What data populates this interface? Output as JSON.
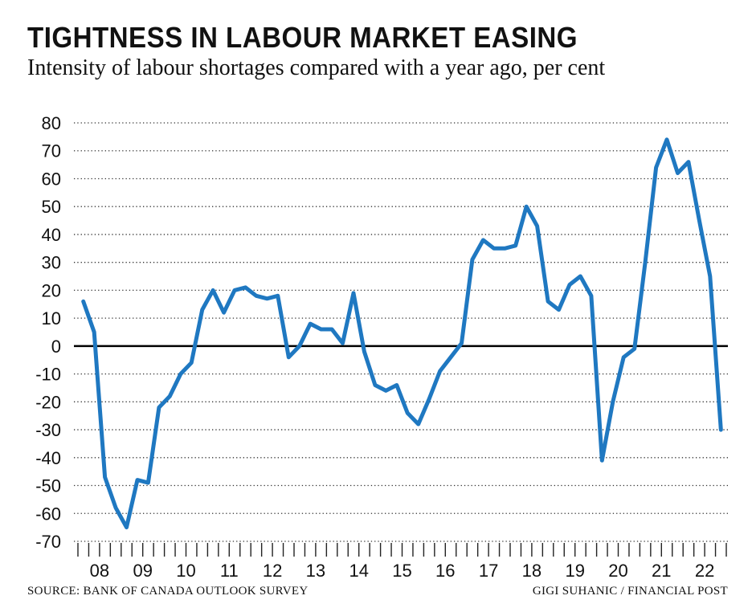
{
  "title": "TIGHTNESS IN LABOUR MARKET EASING",
  "subtitle": "Intensity of labour shortages compared with a year ago, per cent",
  "source": "SOURCE: BANK OF CANADA OUTLOOK SURVEY",
  "credit": "GIGI SUHANIC / FINANCIAL POST",
  "colors": {
    "line": "#1f78c1",
    "zero_line": "#000000",
    "grid": "#333333"
  },
  "chart_data": {
    "type": "line",
    "title": "TIGHTNESS IN LABOUR MARKET EASING",
    "ylabel": "",
    "xlabel": "",
    "ylim": [
      -70,
      80
    ],
    "yticks": [
      80,
      70,
      60,
      50,
      40,
      30,
      20,
      10,
      0,
      -10,
      -20,
      -30,
      -40,
      -50,
      -60,
      -70
    ],
    "grid": "dotted horizontal",
    "xlim": [
      2008.0,
      2023.0
    ],
    "x_tick_labels": [
      {
        "label": "08",
        "year": 2008
      },
      {
        "label": "09",
        "year": 2009
      },
      {
        "label": "10",
        "year": 2010
      },
      {
        "label": "11",
        "year": 2011
      },
      {
        "label": "12",
        "year": 2012
      },
      {
        "label": "13",
        "year": 2013
      },
      {
        "label": "14",
        "year": 2014
      },
      {
        "label": "15",
        "year": 2015
      },
      {
        "label": "16",
        "year": 2016
      },
      {
        "label": "17",
        "year": 2017
      },
      {
        "label": "18",
        "year": 2018
      },
      {
        "label": "19",
        "year": 2019
      },
      {
        "label": "20",
        "year": 2020
      },
      {
        "label": "21",
        "year": 2021
      },
      {
        "label": "22",
        "year": 2022
      }
    ],
    "series": [
      {
        "x": [
          "2008Q1",
          "2008Q2",
          "2008Q3",
          "2008Q4",
          "2009Q1",
          "2009Q2",
          "2009Q3",
          "2009Q4",
          "2010Q1",
          "2010Q2",
          "2010Q3",
          "2010Q4",
          "2011Q1",
          "2011Q2",
          "2011Q3",
          "2011Q4",
          "2012Q1",
          "2012Q2",
          "2012Q3",
          "2012Q4",
          "2013Q1",
          "2013Q2",
          "2013Q3",
          "2013Q4",
          "2014Q1",
          "2014Q2",
          "2014Q3",
          "2014Q4",
          "2015Q1",
          "2015Q2",
          "2015Q3",
          "2015Q4",
          "2016Q1",
          "2016Q2",
          "2016Q3",
          "2016Q4",
          "2017Q1",
          "2017Q2",
          "2017Q3",
          "2017Q4",
          "2018Q1",
          "2018Q2",
          "2018Q3",
          "2018Q4",
          "2019Q1",
          "2019Q2",
          "2019Q3",
          "2019Q4",
          "2020Q1",
          "2020Q2",
          "2020Q3",
          "2020Q4",
          "2021Q1",
          "2021Q2",
          "2021Q3",
          "2021Q4",
          "2022Q1",
          "2022Q2",
          "2022Q3",
          "2022Q4"
        ],
        "values": [
          16,
          5,
          -47,
          -58,
          -65,
          -48,
          -49,
          -22,
          -18,
          -10,
          -6,
          13,
          20,
          12,
          20,
          21,
          18,
          17,
          18,
          -4,
          0,
          8,
          6,
          6,
          1,
          19,
          -2,
          -14,
          -16,
          -14,
          -24,
          -28,
          -19,
          -9,
          -4,
          1,
          31,
          38,
          35,
          35,
          36,
          50,
          43,
          16,
          13,
          22,
          25,
          18,
          -41,
          -20,
          -4,
          -1,
          30,
          64,
          74,
          62,
          66,
          45,
          25,
          -30
        ]
      }
    ]
  }
}
